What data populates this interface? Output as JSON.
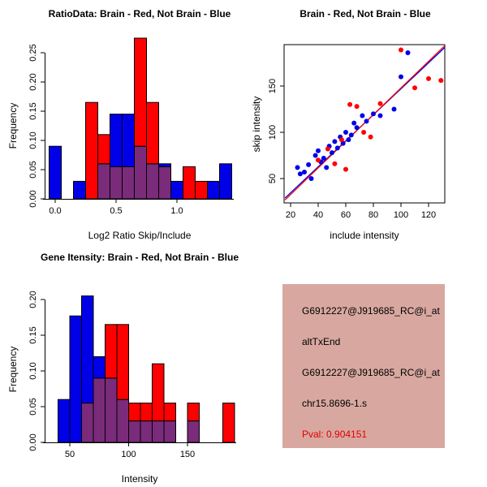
{
  "app": {
    "background": "#FFFFFF"
  },
  "colors": {
    "brain_red": "#FF0000",
    "not_brain_blue": "#0000E8",
    "overlap_purple": "#7A2B7A"
  },
  "chart_data": [
    {
      "type": "bar",
      "subtype": "overlaid_histogram",
      "title": "RatioData: Brain - Red, Not Brain - Blue",
      "xlabel": "Log2 Ratio Skip/Include",
      "ylabel": "Frequency",
      "bin_start": -0.05,
      "bin_width": 0.1,
      "series": [
        {
          "name": "Not Brain",
          "color": "#0000E8",
          "values": [
            0.09,
            0,
            0.03,
            0,
            0.06,
            0.145,
            0.145,
            0.09,
            0.06,
            0.06,
            0.03,
            0,
            0,
            0.03,
            0.06
          ]
        },
        {
          "name": "Brain",
          "color": "#FF0000",
          "values": [
            0,
            0,
            0,
            0.165,
            0.11,
            0.055,
            0.055,
            0.275,
            0.165,
            0.055,
            0,
            0.055,
            0.03,
            0,
            0
          ]
        }
      ],
      "overlap_color": "#7A2B7A",
      "x_tick_values": [
        0,
        0.5,
        1
      ],
      "x_tick_labels": [
        "0.0",
        "0.5",
        "1.0"
      ],
      "y_tick_values": [
        0,
        0.05,
        0.1,
        0.15,
        0.2,
        0.25
      ],
      "y_tick_labels": [
        "0.00",
        "0.05",
        "0.10",
        "0.15",
        "0.20",
        "0.25"
      ],
      "xlim": [
        -0.1,
        1.45
      ],
      "ylim": [
        0,
        0.28
      ],
      "grid": false
    },
    {
      "type": "scatter",
      "title": "Brain - Red, Not Brain - Blue",
      "xlabel": "include intensity",
      "ylabel": "skip intensity",
      "x_tick_values": [
        20,
        40,
        60,
        80,
        100,
        120
      ],
      "x_tick_labels": [
        "20",
        "40",
        "60",
        "80",
        "100",
        "120"
      ],
      "y_tick_values": [
        50,
        100,
        150
      ],
      "y_tick_labels": [
        "50",
        "100",
        "150"
      ],
      "xlim": [
        15,
        132
      ],
      "ylim": [
        24,
        196
      ],
      "series": [
        {
          "name": "Not Brain",
          "color": "#0000E8",
          "points": [
            [
              25,
              62
            ],
            [
              27,
              55
            ],
            [
              30,
              57
            ],
            [
              33,
              65
            ],
            [
              35,
              50
            ],
            [
              38,
              75
            ],
            [
              40,
              80
            ],
            [
              42,
              68
            ],
            [
              44,
              72
            ],
            [
              46,
              62
            ],
            [
              48,
              85
            ],
            [
              50,
              78
            ],
            [
              52,
              90
            ],
            [
              54,
              83
            ],
            [
              56,
              95
            ],
            [
              58,
              88
            ],
            [
              60,
              100
            ],
            [
              62,
              92
            ],
            [
              64,
              97
            ],
            [
              66,
              110
            ],
            [
              68,
              105
            ],
            [
              72,
              118
            ],
            [
              75,
              112
            ],
            [
              80,
              120
            ],
            [
              85,
              118
            ],
            [
              95,
              125
            ],
            [
              100,
              160
            ],
            [
              105,
              186
            ]
          ]
        },
        {
          "name": "Brain",
          "color": "#FF0000",
          "points": [
            [
              40,
              70
            ],
            [
              47,
              82
            ],
            [
              52,
              66
            ],
            [
              57,
              92
            ],
            [
              60,
              60
            ],
            [
              63,
              130
            ],
            [
              68,
              128
            ],
            [
              73,
              100
            ],
            [
              78,
              95
            ],
            [
              85,
              131
            ],
            [
              100,
              189
            ],
            [
              110,
              148
            ],
            [
              120,
              158
            ],
            [
              129,
              156
            ]
          ]
        }
      ],
      "fit_lines": [
        {
          "color": "#0000E8",
          "x1": 16,
          "y1": 29,
          "x2": 132,
          "y2": 192
        },
        {
          "color": "#FF0000",
          "x1": 16,
          "y1": 27,
          "x2": 132,
          "y2": 194
        }
      ],
      "grid": false
    },
    {
      "type": "bar",
      "subtype": "overlaid_histogram",
      "title": "Gene Itensity: Brain - Red, Not Brain - Blue",
      "xlabel": "Intensity",
      "ylabel": "Frequency",
      "bin_start": 40,
      "bin_width": 10,
      "series": [
        {
          "name": "Not Brain",
          "color": "#0000E8",
          "values": [
            0.06,
            0.177,
            0.205,
            0.12,
            0.09,
            0.06,
            0.03,
            0.03,
            0.03,
            0.03,
            0,
            0.03,
            0,
            0,
            0
          ]
        },
        {
          "name": "Brain",
          "color": "#FF0000",
          "values": [
            0,
            0,
            0.055,
            0.09,
            0.165,
            0.165,
            0.055,
            0.055,
            0.11,
            0.055,
            0,
            0.055,
            0,
            0,
            0.055
          ]
        }
      ],
      "overlap_color": "#7A2B7A",
      "x_tick_values": [
        50,
        100,
        150
      ],
      "x_tick_labels": [
        "50",
        "100",
        "150"
      ],
      "y_tick_values": [
        0,
        0.05,
        0.1,
        0.15,
        0.2
      ],
      "y_tick_labels": [
        "0.00",
        "0.05",
        "0.10",
        "0.15",
        "0.20"
      ],
      "xlim": [
        35,
        192
      ],
      "ylim": [
        0,
        0.21
      ],
      "grid": false
    }
  ],
  "info_box": {
    "lines": [
      "G6912227@J919685_RC@i_at",
      "altTxEnd",
      "G6912227@J919685_RC@i_at",
      "chr15.8696-1.s"
    ],
    "pval": "Pval: 0.904151",
    "bg_color": "#D8A8A0",
    "text_color": "#000000",
    "pval_color": "#E00000"
  }
}
